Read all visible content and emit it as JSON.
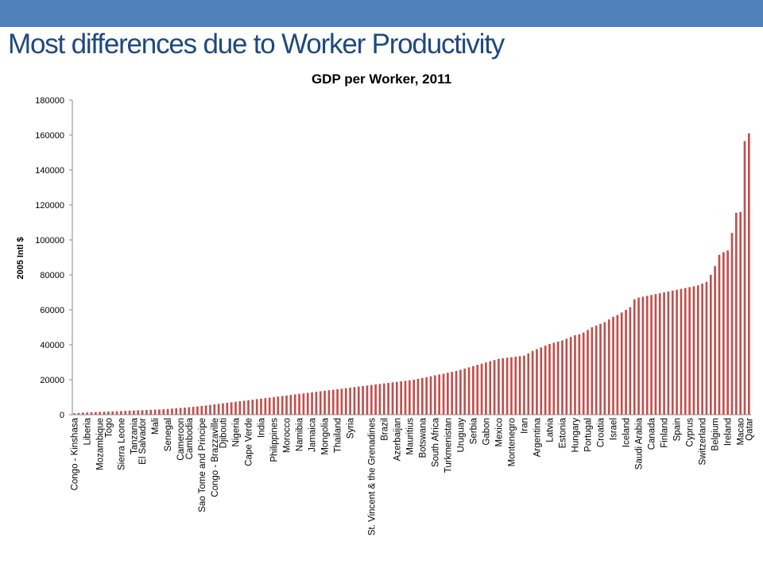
{
  "slide": {
    "title": "Most differences due to Worker Productivity",
    "accent_color": "#4f81bd",
    "title_color": "#1f497d"
  },
  "chart_data": {
    "type": "bar",
    "title": "GDP per Worker, 2011",
    "ylabel": "2005 Intl $",
    "xlabel": "",
    "ylim": [
      0,
      180000
    ],
    "yticks": [
      0,
      20000,
      40000,
      60000,
      80000,
      100000,
      120000,
      140000,
      160000,
      180000
    ],
    "grid": false,
    "legend": "none",
    "bar_color": "#c0504d",
    "categories": [
      "Congo - Kinshasa",
      "",
      "",
      "Liberia",
      "",
      "",
      "Mozambique",
      "",
      "Togo",
      "",
      "",
      "Sierra Leone",
      "",
      "",
      "Tanzania",
      "",
      "El Salvador",
      "",
      "",
      "Mali",
      "",
      "",
      "Senegal",
      "",
      "",
      "Cameroon",
      "",
      "Cambodia",
      "",
      "",
      "Sao Tome and Principe",
      "",
      "",
      "Congo - Brazzaville",
      "",
      "Djibouti",
      "",
      "",
      "Nigeria",
      "",
      "",
      "Cape Verde",
      "",
      "",
      "India",
      "",
      "",
      "Philippines",
      "",
      "",
      "Morocco",
      "",
      "",
      "Namibia",
      "",
      "",
      "Jamaica",
      "",
      "",
      "Mongolia",
      "",
      "",
      "Thailand",
      "",
      "",
      "Syria",
      "",
      "",
      "",
      "",
      "St. Vincent & the Grenadines",
      "",
      "",
      "Brazil",
      "",
      "",
      "Azerbaijan",
      "",
      "",
      "Mauritius",
      "",
      "",
      "Botswana",
      "",
      "",
      "South Africa",
      "",
      "",
      "Turkmenistan",
      "",
      "",
      "Uruguay",
      "",
      "",
      "Serbia",
      "",
      "",
      "Gabon",
      "",
      "",
      "Mexico",
      "",
      "",
      "Montenegro",
      "",
      "",
      "Iran",
      "",
      "",
      "Argentina",
      "",
      "",
      "Latvia",
      "",
      "",
      "Estonia",
      "",
      "",
      "Hungary",
      "",
      "",
      "Portugal",
      "",
      "",
      "Croatia",
      "",
      "",
      "Israel",
      "",
      "",
      "Iceland",
      "",
      "",
      "Saudi Arabia",
      "",
      "",
      "Canada",
      "",
      "",
      "Finland",
      "",
      "",
      "Spain",
      "",
      "",
      "Cyprus",
      "",
      "",
      "Switzerland",
      "",
      "",
      "Belgium",
      "",
      "",
      "Ireland",
      "",
      "",
      "Macao",
      "",
      "Qatar"
    ],
    "values": [
      800,
      1000,
      1200,
      1300,
      1400,
      1500,
      1600,
      1700,
      1800,
      1900,
      2000,
      2100,
      2200,
      2300,
      2400,
      2500,
      2600,
      2700,
      2800,
      2900,
      3000,
      3100,
      3300,
      3500,
      3700,
      3900,
      4100,
      4300,
      4500,
      4700,
      5000,
      5300,
      5600,
      5900,
      6200,
      6500,
      6800,
      7100,
      7400,
      7700,
      8000,
      8300,
      8600,
      8900,
      9200,
      9500,
      9800,
      10100,
      10400,
      10700,
      11000,
      11300,
      11600,
      11900,
      12200,
      12500,
      12800,
      13100,
      13400,
      13700,
      14000,
      14300,
      14600,
      14900,
      15200,
      15500,
      15800,
      16100,
      16400,
      16700,
      17000,
      17300,
      17600,
      17900,
      18200,
      18500,
      18800,
      19100,
      19400,
      19700,
      20000,
      20500,
      21000,
      21500,
      22000,
      22500,
      23000,
      23500,
      24000,
      24500,
      25000,
      25700,
      26400,
      27100,
      27800,
      28500,
      29200,
      29900,
      30600,
      31300,
      32000,
      32300,
      32600,
      32900,
      33200,
      33500,
      33800,
      35000,
      36500,
      37500,
      38500,
      39500,
      40500,
      41200,
      41800,
      42500,
      43500,
      44500,
      45500,
      46000,
      47000,
      48500,
      50000,
      51000,
      52000,
      53000,
      54500,
      56000,
      57000,
      58500,
      60000,
      61500,
      66000,
      67000,
      67500,
      68000,
      68500,
      69000,
      69500,
      70000,
      70500,
      71000,
      71500,
      72000,
      72500,
      73000,
      73500,
      74000,
      75000,
      76000,
      80000,
      85000,
      91500,
      93000,
      94000,
      104000,
      115500,
      116000,
      156500,
      161000
    ]
  }
}
